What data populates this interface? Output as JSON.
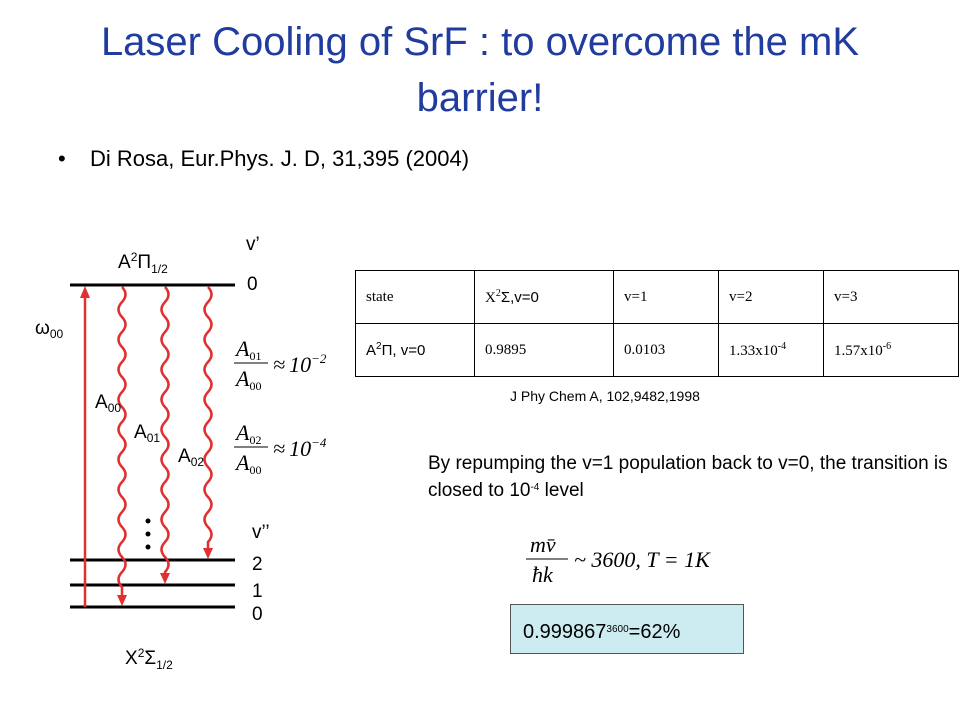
{
  "title": "Laser Cooling of SrF : to overcome the mK barrier!",
  "bullet": {
    "marker": "•",
    "text": "Di Rosa, Eur.Phys. J. D, 31,395 (2004)"
  },
  "diagram": {
    "upper_state": [
      "A",
      "2",
      "Π",
      "1/2"
    ],
    "upper_v_label": "v’",
    "upper_level": "0",
    "omega": [
      "ω",
      "00"
    ],
    "rates": [
      [
        "A",
        "00"
      ],
      [
        "A",
        "01"
      ],
      [
        "A",
        "02"
      ]
    ],
    "lower_v_label": "v’’",
    "lower_levels": [
      "2",
      "1",
      "0"
    ],
    "lower_state": [
      "X",
      "2",
      "Σ",
      "1/2"
    ]
  },
  "ratios": [
    {
      "num": [
        "A",
        "01"
      ],
      "den": [
        "A",
        "00"
      ],
      "approx": "≈",
      "base": "10",
      "exp": "−2"
    },
    {
      "num": [
        "A",
        "02"
      ],
      "den": [
        "A",
        "00"
      ],
      "approx": "≈",
      "base": "10",
      "exp": "−4"
    }
  ],
  "table": {
    "header": [
      [
        "state"
      ],
      [
        "X",
        "2",
        "Σ,v=0"
      ],
      [
        "v=1"
      ],
      [
        "v=2"
      ],
      [
        "v=3"
      ]
    ],
    "rows": [
      [
        [
          "A",
          "2",
          "Π, v=0"
        ],
        [
          "0.9895"
        ],
        [
          "0.0103"
        ],
        [
          "1.33x10",
          "-4"
        ],
        [
          "1.57x10",
          "-6"
        ]
      ]
    ]
  },
  "source": "J Phy Chem A, 102,9482,1998",
  "note": [
    "By repumping the v=1 population back to v=0, the transition is closed to 10",
    "-4",
    " level"
  ],
  "formula": {
    "num": "mv̄",
    "den": "ħk",
    "rest": "~ 3600, T = 1K"
  },
  "result": [
    "0.999867",
    "3600",
    "=62%"
  ]
}
